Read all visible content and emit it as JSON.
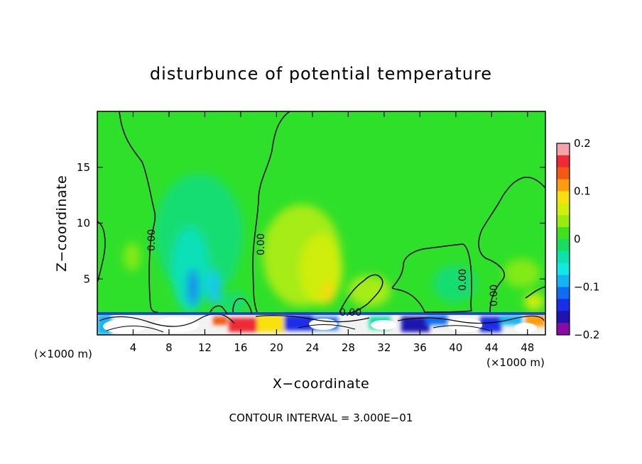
{
  "chart_data": {
    "type": "heatmap",
    "title": "disturbunce of potential temperature",
    "xlabel": "X−coordinate",
    "ylabel": "Z−coordinate",
    "x_unit_left": "(×1000 m)",
    "x_unit_right": "(×1000 m)",
    "xlim": [
      0,
      50
    ],
    "ylim": [
      0,
      20
    ],
    "x_ticks": [
      4,
      8,
      12,
      16,
      20,
      24,
      28,
      32,
      36,
      40,
      44,
      48
    ],
    "x_tick_labels": [
      "4",
      "8",
      "12",
      "16",
      "20",
      "24",
      "28",
      "32",
      "36",
      "40",
      "44",
      "48"
    ],
    "y_ticks": [
      5,
      10,
      15
    ],
    "y_tick_labels": [
      "5",
      "10",
      "15"
    ],
    "contour_labels": [
      {
        "text": "0.00",
        "x": 6.3,
        "z": 8.5
      },
      {
        "text": "0.00",
        "x": 18.0,
        "z": 8.0
      },
      {
        "text": "0.00",
        "x": 28.0,
        "z": 2.1
      },
      {
        "text": "0.00",
        "x": 40.5,
        "z": 5.0
      },
      {
        "text": "0.00",
        "x": 44.3,
        "z": 3.0
      }
    ],
    "colorbar": {
      "min": -0.2,
      "max": 0.2,
      "tick_values": [
        0.2,
        0.1,
        0,
        -0.1,
        -0.2
      ],
      "tick_labels": [
        "0.2",
        "0.1",
        "0",
        "−0.1",
        "−0.2"
      ],
      "colors": [
        "#f4a3a8",
        "#ee2a36",
        "#f25a14",
        "#fa9d0e",
        "#f8e010",
        "#d2ee0f",
        "#98ec0f",
        "#3fe01e",
        "#17de62",
        "#0ee1a9",
        "#12e9e5",
        "#12b4f2",
        "#0f6df4",
        "#1a2de8",
        "#1f14b0",
        "#8a0aa8"
      ]
    },
    "footnote": "CONTOUR INTERVAL = 3.000E−01",
    "background_field_color": "#2fe02a"
  }
}
